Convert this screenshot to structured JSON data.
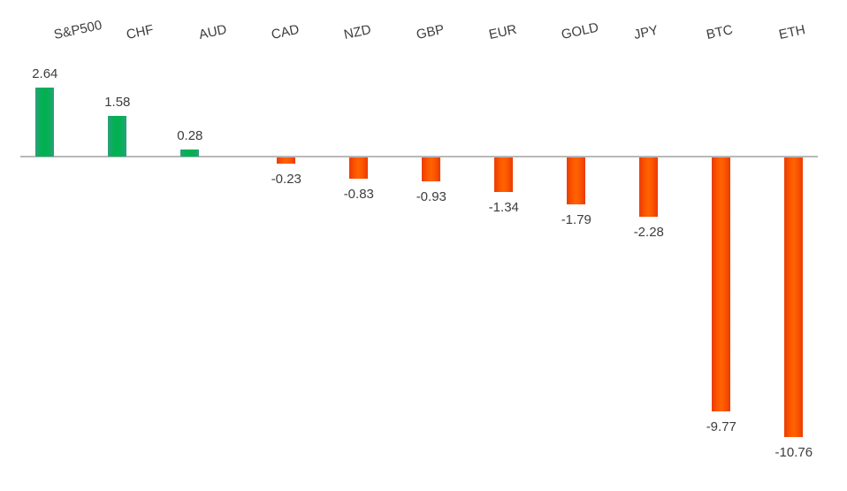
{
  "chart_data": {
    "type": "bar",
    "title": "",
    "xlabel": "",
    "ylabel": "",
    "categories": [
      "S&P500",
      "CHF",
      "AUD",
      "CAD",
      "NZD",
      "GBP",
      "EUR",
      "GOLD",
      "JPY",
      "BTC",
      "ETH"
    ],
    "values": [
      2.64,
      1.58,
      0.28,
      -0.23,
      -0.83,
      -0.93,
      -1.34,
      -1.79,
      -2.28,
      -9.77,
      -10.76
    ],
    "value_labels": [
      "2.64",
      "1.58",
      "0.28",
      "-0.23",
      "-0.83",
      "-0.93",
      "-1.34",
      "-1.79",
      "-2.28",
      "-9.77",
      "-10.76"
    ],
    "ylim": [
      -10.76,
      2.64
    ],
    "baseline": 0,
    "grid": false,
    "legend": "none",
    "category_labels_position": "top",
    "positive_color": "#00b050",
    "positive_edge_color": "#2c9f7d",
    "negative_color": "#ff6300",
    "negative_edge_color": "#e93c00",
    "axis_line_color": "#b9b9b9",
    "text_color": "#3d3d3d",
    "background_color": "#ffffff"
  }
}
